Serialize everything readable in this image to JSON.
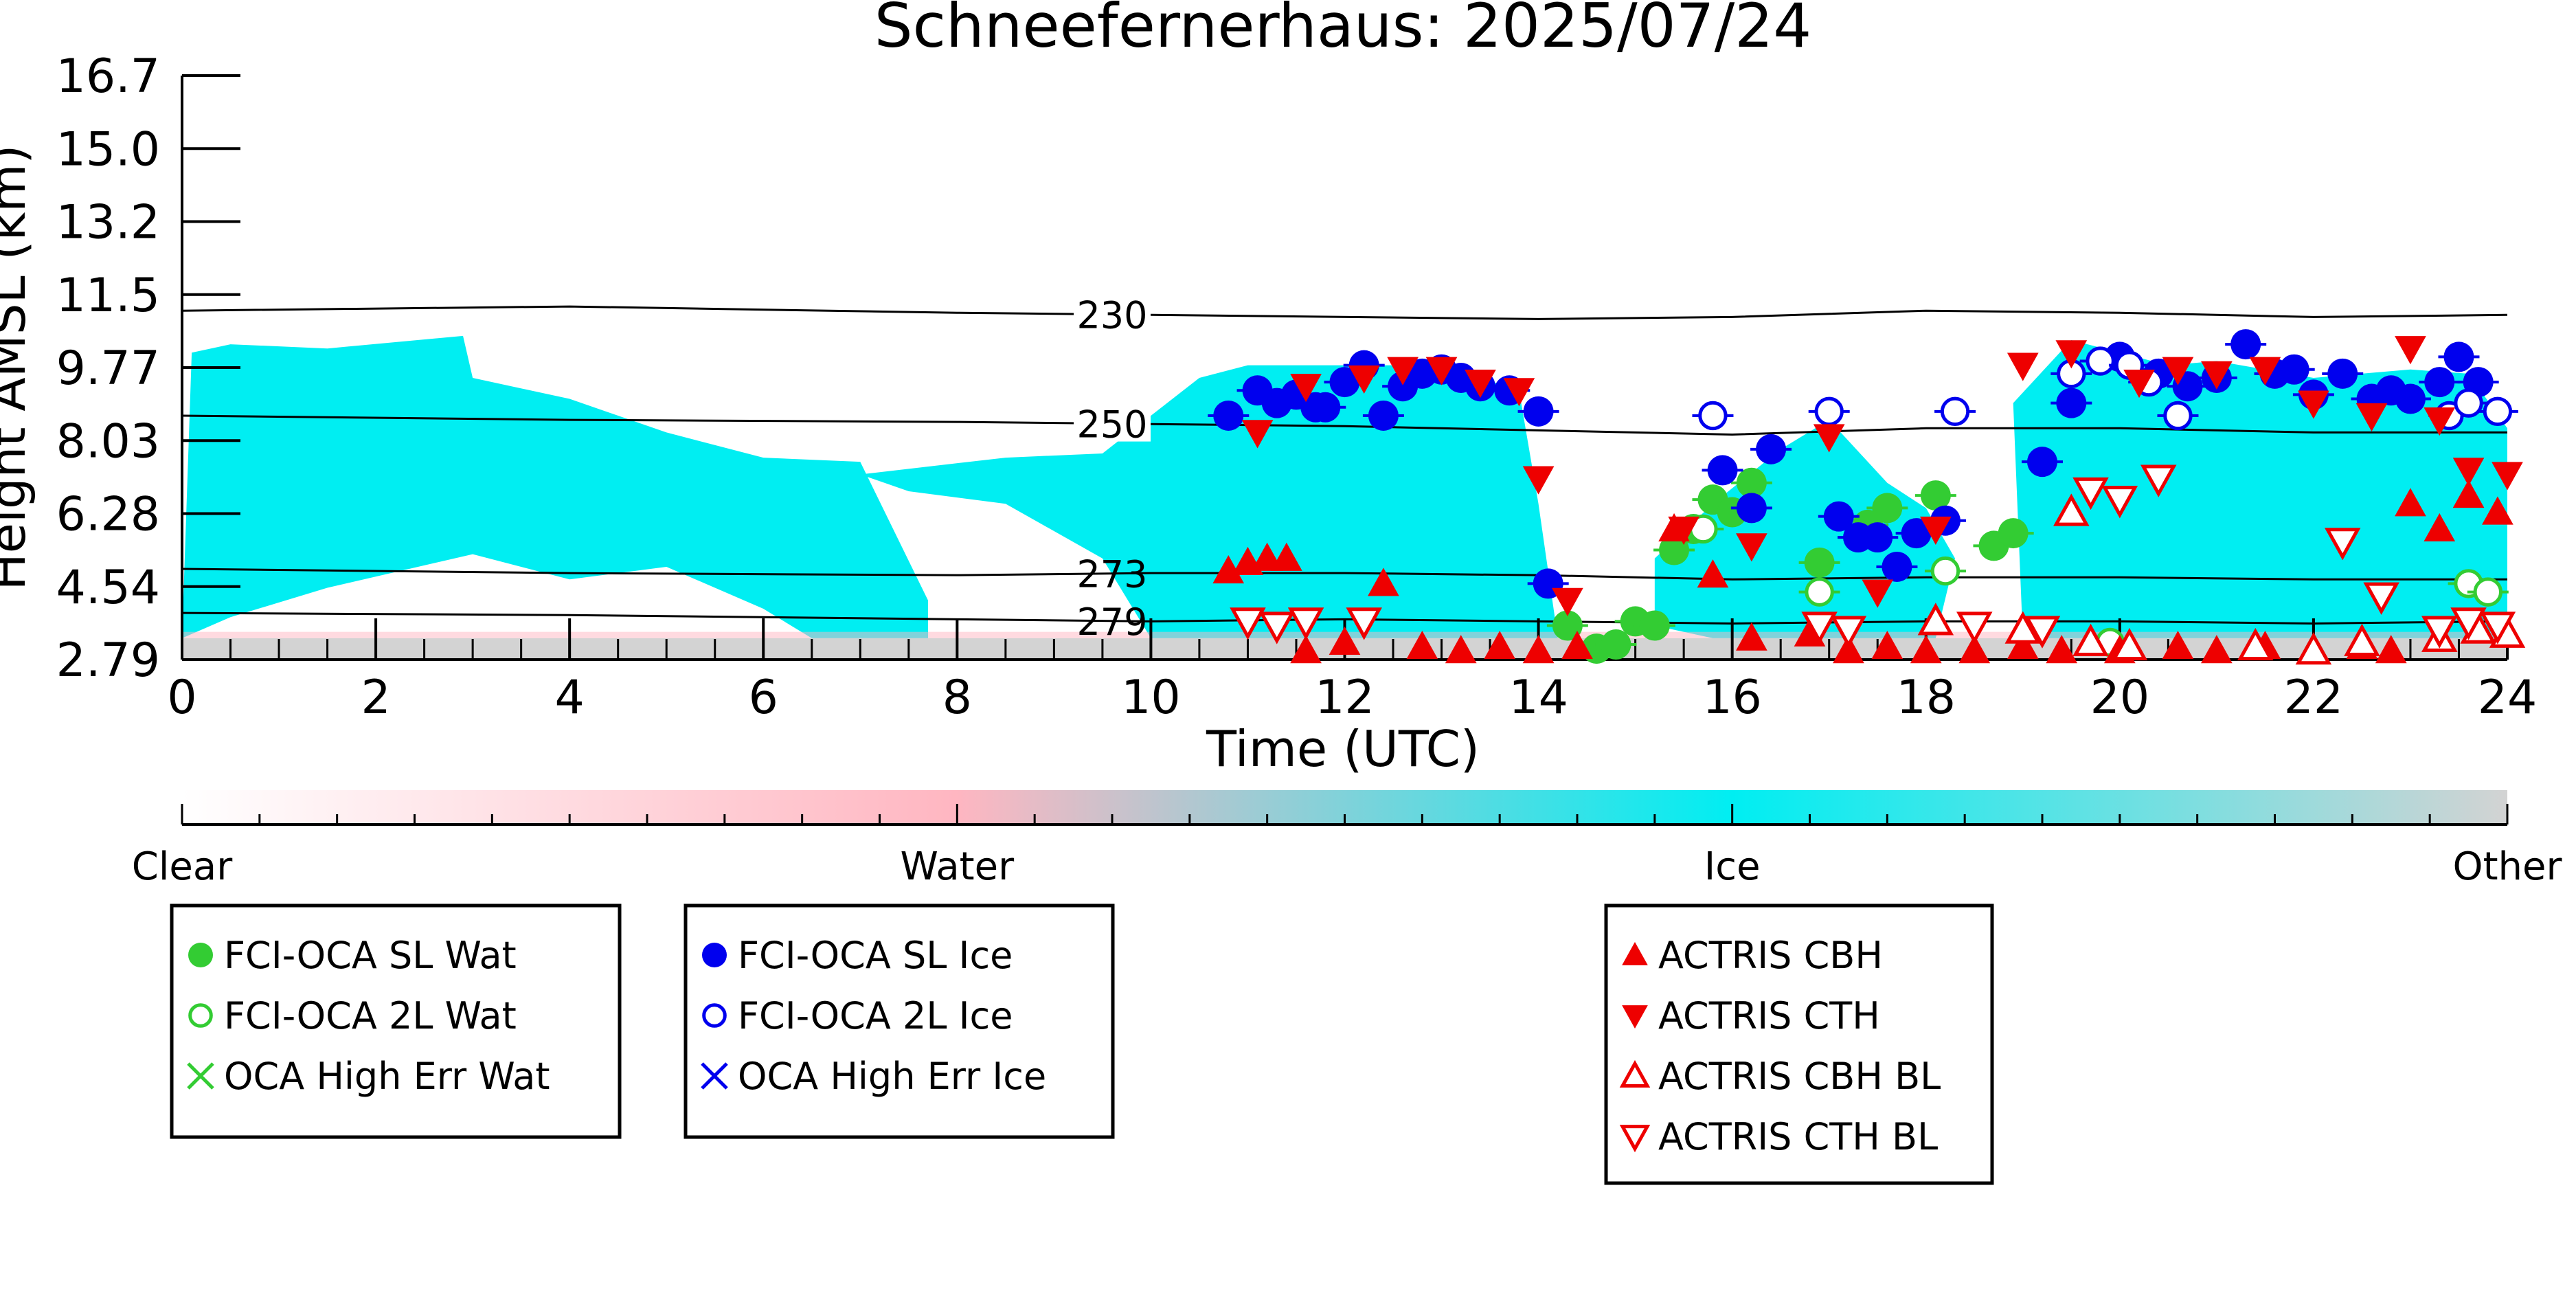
{
  "chart_data": {
    "type": "scatter",
    "title": "Schneefernerhaus: 2025/07/24",
    "xlabel": "Time (UTC)",
    "ylabel": "Height AMSL (km)",
    "xlim": [
      0,
      24
    ],
    "ylim": [
      2.79,
      16.7
    ],
    "x_ticks": [
      0,
      2,
      4,
      6,
      8,
      10,
      12,
      14,
      16,
      18,
      20,
      22,
      24
    ],
    "y_ticks": [
      "2.79",
      "4.54",
      "6.28",
      "8.03",
      "9.77",
      "11.5",
      "13.2",
      "15.0",
      "16.7"
    ],
    "grid": false,
    "colorbar": {
      "labels": [
        "Clear",
        "Water",
        "Ice",
        "Other"
      ],
      "colors": {
        "clear": "#ffffff",
        "water": "#ffb6c1",
        "ice": "#00eef2",
        "other": "#d3d3d3"
      }
    },
    "temperature_contours": [
      {
        "label": "230",
        "heights": [
          [
            0,
            11.1
          ],
          [
            4,
            11.2
          ],
          [
            8,
            11.05
          ],
          [
            10,
            11.0
          ],
          [
            14,
            10.9
          ],
          [
            16,
            10.95
          ],
          [
            18,
            11.1
          ],
          [
            20,
            11.05
          ],
          [
            22,
            10.95
          ],
          [
            24,
            11.0
          ]
        ]
      },
      {
        "label": "250",
        "heights": [
          [
            0,
            8.6
          ],
          [
            4,
            8.5
          ],
          [
            8,
            8.45
          ],
          [
            10,
            8.4
          ],
          [
            12,
            8.35
          ],
          [
            14,
            8.25
          ],
          [
            16,
            8.15
          ],
          [
            18,
            8.3
          ],
          [
            20,
            8.3
          ],
          [
            22,
            8.2
          ],
          [
            24,
            8.2
          ]
        ]
      },
      {
        "label": "273",
        "heights": [
          [
            0,
            4.95
          ],
          [
            4,
            4.85
          ],
          [
            8,
            4.8
          ],
          [
            10,
            4.85
          ],
          [
            12,
            4.85
          ],
          [
            14,
            4.8
          ],
          [
            16,
            4.7
          ],
          [
            18,
            4.75
          ],
          [
            20,
            4.75
          ],
          [
            22,
            4.7
          ],
          [
            24,
            4.7
          ]
        ]
      },
      {
        "label": "279",
        "heights": [
          [
            0,
            3.9
          ],
          [
            4,
            3.85
          ],
          [
            8,
            3.75
          ],
          [
            10,
            3.7
          ],
          [
            12,
            3.75
          ],
          [
            14,
            3.7
          ],
          [
            16,
            3.65
          ],
          [
            18,
            3.7
          ],
          [
            20,
            3.7
          ],
          [
            22,
            3.65
          ],
          [
            24,
            3.7
          ]
        ]
      }
    ],
    "ice_cloud_regions": [
      {
        "label": "",
        "x": [
          0,
          0.1,
          0.5,
          1.5,
          2.9,
          3.0,
          4.0,
          5.0,
          6.0,
          7.0,
          7.7,
          7.7,
          6.5,
          6.0,
          5.0,
          4.0,
          3.0,
          1.5,
          0.5,
          0.0
        ],
        "y": [
          3.3,
          10.1,
          10.3,
          10.2,
          10.5,
          9.5,
          9.0,
          8.2,
          7.6,
          7.5,
          4.2,
          3.3,
          3.3,
          4.0,
          5.0,
          4.7,
          5.3,
          4.5,
          3.8,
          3.3
        ]
      },
      {
        "label": "",
        "x": [
          7.0,
          8.5,
          9.5,
          10.0,
          10.5,
          11.0,
          12.0,
          13.0,
          13.8,
          14.0,
          14.2,
          13.8,
          12.0,
          11.0,
          10.0,
          9.5,
          8.5,
          7.5
        ],
        "y": [
          7.2,
          7.6,
          7.7,
          8.6,
          9.5,
          9.8,
          9.8,
          9.8,
          9.2,
          6.5,
          3.3,
          3.3,
          3.3,
          3.3,
          3.3,
          5.2,
          6.5,
          6.8
        ]
      },
      {
        "label": "",
        "x": [
          15.2,
          15.8,
          16.5,
          17.0,
          17.6,
          18.0,
          18.3,
          18.1,
          17.5,
          17.0,
          16.4,
          15.8,
          15.2
        ],
        "y": [
          5.2,
          6.5,
          7.8,
          8.5,
          7.0,
          6.4,
          5.2,
          3.3,
          3.3,
          3.3,
          3.3,
          3.3,
          3.6
        ]
      },
      {
        "label": "",
        "x": [
          18.9,
          19.5,
          20.0,
          20.5,
          21.0,
          22.0,
          23.0,
          23.6,
          24.0,
          24.0,
          23.3,
          22.5,
          21.0,
          20.0,
          19.0
        ],
        "y": [
          8.9,
          10.4,
          10.1,
          9.8,
          9.9,
          9.5,
          9.7,
          9.6,
          8.3,
          3.3,
          3.3,
          3.3,
          3.3,
          3.3,
          3.3
        ]
      }
    ],
    "series": [
      {
        "name": "FCI-OCA SL Wat",
        "marker": "filled-circle",
        "color": "#33cc33",
        "points": [
          [
            14.3,
            3.6
          ],
          [
            14.6,
            3.05
          ],
          [
            14.8,
            3.15
          ],
          [
            15.0,
            3.7
          ],
          [
            15.2,
            3.6
          ],
          [
            15.4,
            5.4
          ],
          [
            15.6,
            5.9
          ],
          [
            15.8,
            6.6
          ],
          [
            16.0,
            6.3
          ],
          [
            16.2,
            7.0
          ],
          [
            16.9,
            5.1
          ],
          [
            17.4,
            6.0
          ],
          [
            17.6,
            6.4
          ],
          [
            18.1,
            6.7
          ],
          [
            18.7,
            5.5
          ],
          [
            18.9,
            5.8
          ]
        ]
      },
      {
        "name": "FCI-OCA 2L Wat",
        "marker": "open-circle",
        "color": "#33cc33",
        "points": [
          [
            15.7,
            5.9
          ],
          [
            16.9,
            4.4
          ],
          [
            18.2,
            4.9
          ],
          [
            19.9,
            3.2
          ],
          [
            23.6,
            4.6
          ],
          [
            23.8,
            4.4
          ]
        ]
      },
      {
        "name": "OCA High Err Wat",
        "marker": "x",
        "color": "#33cc33",
        "points": []
      },
      {
        "name": "FCI-OCA SL Ice",
        "marker": "filled-circle",
        "color": "#0000ee",
        "points": [
          [
            10.8,
            8.6
          ],
          [
            11.1,
            9.2
          ],
          [
            11.3,
            8.9
          ],
          [
            11.5,
            9.1
          ],
          [
            11.7,
            8.8
          ],
          [
            11.8,
            8.8
          ],
          [
            12.0,
            9.4
          ],
          [
            12.2,
            9.8
          ],
          [
            12.4,
            8.6
          ],
          [
            12.6,
            9.3
          ],
          [
            12.8,
            9.6
          ],
          [
            13.0,
            9.7
          ],
          [
            13.2,
            9.5
          ],
          [
            13.4,
            9.3
          ],
          [
            13.7,
            9.2
          ],
          [
            14.0,
            8.7
          ],
          [
            14.1,
            4.6
          ],
          [
            15.9,
            7.3
          ],
          [
            16.2,
            6.4
          ],
          [
            16.4,
            7.8
          ],
          [
            17.1,
            6.2
          ],
          [
            17.3,
            5.7
          ],
          [
            17.5,
            5.7
          ],
          [
            17.7,
            5.0
          ],
          [
            17.9,
            5.8
          ],
          [
            18.2,
            6.1
          ],
          [
            19.2,
            7.5
          ],
          [
            19.5,
            8.9
          ],
          [
            20.0,
            10.0
          ],
          [
            20.4,
            9.6
          ],
          [
            20.7,
            9.3
          ],
          [
            21.0,
            9.5
          ],
          [
            21.3,
            10.3
          ],
          [
            21.6,
            9.6
          ],
          [
            21.8,
            9.7
          ],
          [
            22.0,
            9.1
          ],
          [
            22.3,
            9.6
          ],
          [
            22.6,
            9.0
          ],
          [
            22.8,
            9.2
          ],
          [
            23.0,
            9.0
          ],
          [
            23.3,
            9.4
          ],
          [
            23.5,
            10.0
          ],
          [
            23.7,
            9.4
          ]
        ]
      },
      {
        "name": "FCI-OCA 2L Ice",
        "marker": "open-circle",
        "color": "#0000ee",
        "points": [
          [
            15.8,
            8.6
          ],
          [
            17.0,
            8.7
          ],
          [
            18.3,
            8.7
          ],
          [
            19.5,
            9.6
          ],
          [
            19.8,
            9.9
          ],
          [
            20.1,
            9.8
          ],
          [
            20.3,
            9.4
          ],
          [
            20.6,
            8.6
          ],
          [
            23.4,
            8.6
          ],
          [
            23.6,
            8.9
          ],
          [
            23.9,
            8.7
          ]
        ]
      },
      {
        "name": "OCA High Err Ice",
        "marker": "x",
        "color": "#0000ee",
        "points": []
      },
      {
        "name": "ACTRIS CBH",
        "marker": "triangle-up",
        "color": "#ee0000",
        "points": [
          [
            10.8,
            4.9
          ],
          [
            11.0,
            5.1
          ],
          [
            11.2,
            5.2
          ],
          [
            11.4,
            5.2
          ],
          [
            11.6,
            3.0
          ],
          [
            12.0,
            3.2
          ],
          [
            12.4,
            4.6
          ],
          [
            12.8,
            3.1
          ],
          [
            13.2,
            3.0
          ],
          [
            13.6,
            3.1
          ],
          [
            14.0,
            3.0
          ],
          [
            14.4,
            3.1
          ],
          [
            15.4,
            5.9
          ],
          [
            15.8,
            4.8
          ],
          [
            16.2,
            3.3
          ],
          [
            16.8,
            3.4
          ],
          [
            17.2,
            3.0
          ],
          [
            17.6,
            3.1
          ],
          [
            18.0,
            3.0
          ],
          [
            18.5,
            3.0
          ],
          [
            19.0,
            3.1
          ],
          [
            19.4,
            3.0
          ],
          [
            20.0,
            3.0
          ],
          [
            20.6,
            3.1
          ],
          [
            21.0,
            3.0
          ],
          [
            21.5,
            3.1
          ],
          [
            22.0,
            3.0
          ],
          [
            22.5,
            3.1
          ],
          [
            22.8,
            3.0
          ],
          [
            23.0,
            6.5
          ],
          [
            23.3,
            5.9
          ],
          [
            23.6,
            6.7
          ],
          [
            23.9,
            6.3
          ]
        ]
      },
      {
        "name": "ACTRIS CTH",
        "marker": "triangle-down",
        "color": "#ee0000",
        "points": [
          [
            11.1,
            8.2
          ],
          [
            11.6,
            9.3
          ],
          [
            12.2,
            9.5
          ],
          [
            12.6,
            9.7
          ],
          [
            13.0,
            9.7
          ],
          [
            13.4,
            9.4
          ],
          [
            13.8,
            9.2
          ],
          [
            14.0,
            7.1
          ],
          [
            14.3,
            4.2
          ],
          [
            15.5,
            5.9
          ],
          [
            16.2,
            5.5
          ],
          [
            17.0,
            8.1
          ],
          [
            17.5,
            4.4
          ],
          [
            18.1,
            5.9
          ],
          [
            19.0,
            9.8
          ],
          [
            19.5,
            10.1
          ],
          [
            20.2,
            9.4
          ],
          [
            20.6,
            9.7
          ],
          [
            21.0,
            9.6
          ],
          [
            21.5,
            9.7
          ],
          [
            22.0,
            8.9
          ],
          [
            22.6,
            8.6
          ],
          [
            23.0,
            10.2
          ],
          [
            23.3,
            8.5
          ],
          [
            23.6,
            7.3
          ],
          [
            24.0,
            7.2
          ]
        ]
      },
      {
        "name": "ACTRIS CBH BL",
        "marker": "open-triangle-up",
        "color": "#ee0000",
        "points": [
          [
            18.1,
            3.7
          ],
          [
            19.0,
            3.5
          ],
          [
            19.5,
            6.3
          ],
          [
            19.7,
            3.2
          ],
          [
            20.1,
            3.1
          ],
          [
            21.4,
            3.1
          ],
          [
            22.0,
            3.0
          ],
          [
            22.5,
            3.2
          ],
          [
            23.3,
            3.3
          ],
          [
            23.7,
            3.5
          ],
          [
            24.0,
            3.4
          ]
        ]
      },
      {
        "name": "ACTRIS CTH BL",
        "marker": "open-triangle-down",
        "color": "#ee0000",
        "points": [
          [
            11.0,
            3.7
          ],
          [
            11.3,
            3.6
          ],
          [
            11.6,
            3.7
          ],
          [
            12.2,
            3.7
          ],
          [
            16.9,
            3.6
          ],
          [
            17.2,
            3.5
          ],
          [
            18.5,
            3.6
          ],
          [
            19.2,
            3.5
          ],
          [
            19.7,
            6.8
          ],
          [
            20.0,
            6.6
          ],
          [
            20.4,
            7.1
          ],
          [
            22.3,
            5.6
          ],
          [
            22.7,
            4.3
          ],
          [
            23.3,
            3.5
          ],
          [
            23.6,
            3.7
          ],
          [
            23.9,
            3.6
          ]
        ]
      }
    ],
    "legend": [
      {
        "box": "water",
        "entries": [
          "FCI-OCA SL Wat",
          "FCI-OCA 2L Wat",
          "OCA High Err Wat"
        ]
      },
      {
        "box": "ice",
        "entries": [
          "FCI-OCA SL Ice",
          "FCI-OCA 2L Ice",
          "OCA High Err Ice"
        ]
      },
      {
        "box": "actris",
        "entries": [
          "ACTRIS CBH",
          "ACTRIS CTH",
          "ACTRIS CBH BL",
          "ACTRIS CTH BL"
        ]
      }
    ],
    "legend_placement": "bottom"
  }
}
